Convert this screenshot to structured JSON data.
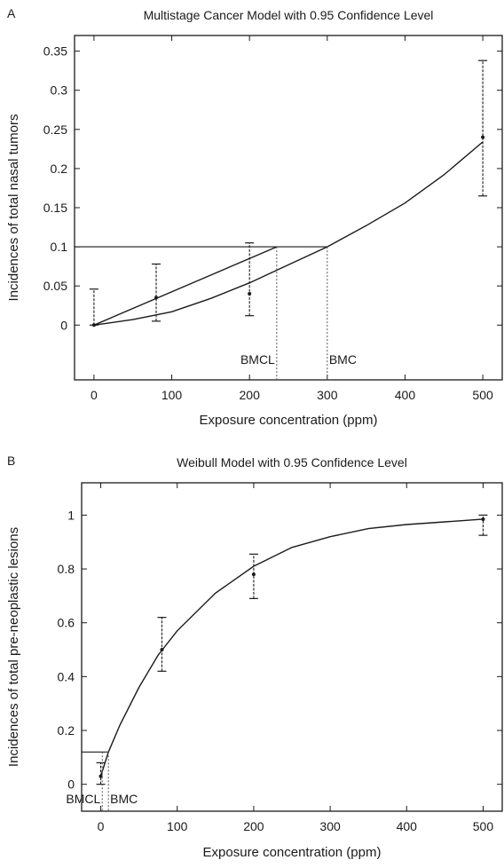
{
  "chart_data": [
    {
      "type": "line",
      "panel_label": "A",
      "title": "Multistage Cancer Model with 0.95 Confidence Level",
      "xlabel": "Exposure concentration (ppm)",
      "ylabel": "Incidences of total nasal tumors",
      "xlim": [
        -25,
        525
      ],
      "ylim": [
        -0.07,
        0.37
      ],
      "xticks": [
        0,
        100,
        200,
        300,
        400,
        500
      ],
      "xtick_labels": [
        "0",
        "100",
        "200",
        "300",
        "400",
        "500"
      ],
      "yticks": [
        0,
        0.05,
        0.1,
        0.15,
        0.2,
        0.25,
        0.3,
        0.35
      ],
      "ytick_labels": [
        "0",
        "0.05",
        "0.1",
        "0.15",
        "0.2",
        "0.25",
        "0.3",
        "0.35"
      ],
      "grid": false,
      "series": [
        {
          "kind": "model_curve",
          "x": [
            0,
            50,
            100,
            150,
            200,
            250,
            300,
            350,
            400,
            450,
            500
          ],
          "y": [
            0,
            0.007,
            0.017,
            0.034,
            0.054,
            0.077,
            0.1,
            0.127,
            0.156,
            0.192,
            0.234
          ]
        },
        {
          "kind": "bmcl_line",
          "x": [
            0,
            235
          ],
          "y": [
            0,
            0.1
          ]
        },
        {
          "kind": "observed",
          "x": [
            0,
            80,
            200,
            500
          ],
          "y": [
            0.0,
            0.035,
            0.04,
            0.24
          ],
          "y_lower": [
            0.0,
            0.005,
            0.012,
            0.165
          ],
          "y_upper": [
            0.046,
            0.078,
            0.105,
            0.338
          ]
        }
      ],
      "bmr": 0.1,
      "bmcl": 235,
      "bmc": 300,
      "annotations": [
        "BMCL",
        "BMC"
      ]
    },
    {
      "type": "line",
      "panel_label": "B",
      "title": "Weibull Model with 0.95 Confidence Level",
      "xlabel": "Exposure concentration (ppm)",
      "ylabel": "Incidences of total pre-neoplastic lesions",
      "xlim": [
        -25,
        525
      ],
      "ylim": [
        -0.1,
        1.12
      ],
      "xticks": [
        0,
        100,
        200,
        300,
        400,
        500
      ],
      "xtick_labels": [
        "0",
        "100",
        "200",
        "300",
        "400",
        "500"
      ],
      "yticks": [
        0,
        0.2,
        0.4,
        0.6,
        0.8,
        1
      ],
      "ytick_labels": [
        "0",
        "0.2",
        "0.4",
        "0.6",
        "0.8",
        "1"
      ],
      "grid": false,
      "series": [
        {
          "kind": "model_curve",
          "x": [
            0,
            10,
            25,
            50,
            75,
            100,
            150,
            200,
            250,
            300,
            350,
            400,
            450,
            500
          ],
          "y": [
            0.03,
            0.12,
            0.22,
            0.36,
            0.48,
            0.57,
            0.71,
            0.81,
            0.88,
            0.92,
            0.95,
            0.965,
            0.975,
            0.985
          ]
        },
        {
          "kind": "observed",
          "x": [
            0,
            80,
            200,
            500
          ],
          "y": [
            0.03,
            0.5,
            0.78,
            0.985
          ],
          "y_lower": [
            0.0,
            0.42,
            0.69,
            0.925
          ],
          "y_upper": [
            0.08,
            0.62,
            0.855,
            1.0
          ]
        }
      ],
      "bmr": 0.12,
      "bmcl": 2,
      "bmc": 10,
      "annotations": [
        "BMCL",
        "BMC"
      ]
    }
  ]
}
